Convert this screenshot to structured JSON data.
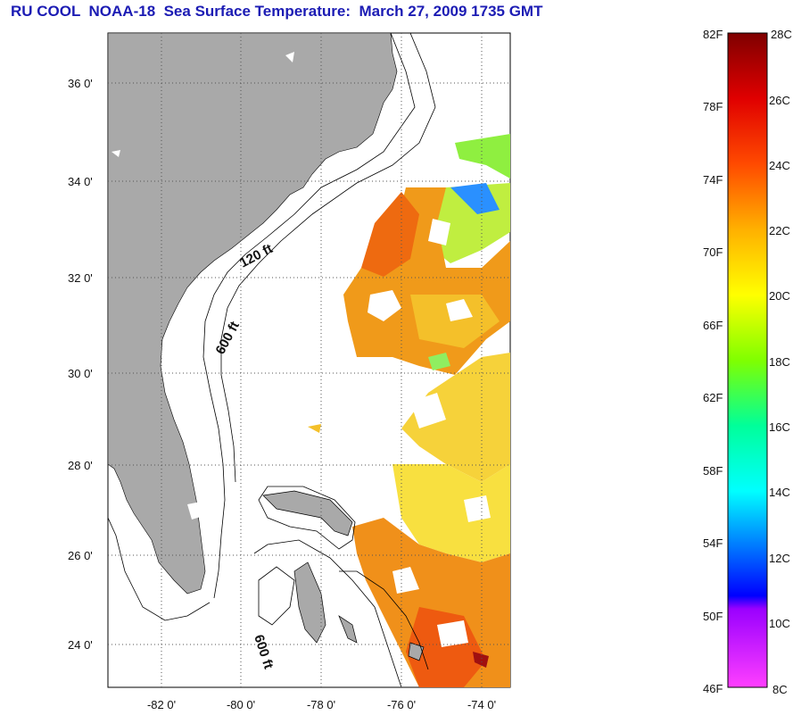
{
  "title": "RU COOL  NOAA-18  Sea Surface Temperature:  March 27, 2009 1735 GMT",
  "map": {
    "lat_ticks": [
      "36 0'",
      "34 0'",
      "32 0'",
      "30 0'",
      "28 0'",
      "26 0'",
      "24 0'"
    ],
    "lon_ticks": [
      "-82 0'",
      "-80 0'",
      "-78 0'",
      "-76 0'",
      "-74 0'"
    ],
    "isobath_labels": [
      "120 ft",
      "600 ft",
      "600 ft"
    ],
    "colors": {
      "land": "#a9a9a9",
      "ocean": "#ffffff",
      "grid": "#555555",
      "contour": "#000000"
    }
  },
  "colorbar": {
    "fahrenheit_ticks": [
      "82F",
      "78F",
      "74F",
      "70F",
      "66F",
      "62F",
      "58F",
      "54F",
      "50F",
      "46F"
    ],
    "celsius_ticks": [
      "28C",
      "26C",
      "24C",
      "22C",
      "20C",
      "18C",
      "16C",
      "14C",
      "12C",
      "10C",
      "8C"
    ],
    "colors": [
      "#7f0000",
      "#ff0000",
      "#ff7f00",
      "#ffff00",
      "#7fff00",
      "#00ffff",
      "#007fff",
      "#0000ff",
      "#7f00ff",
      "#ff3fff"
    ]
  }
}
